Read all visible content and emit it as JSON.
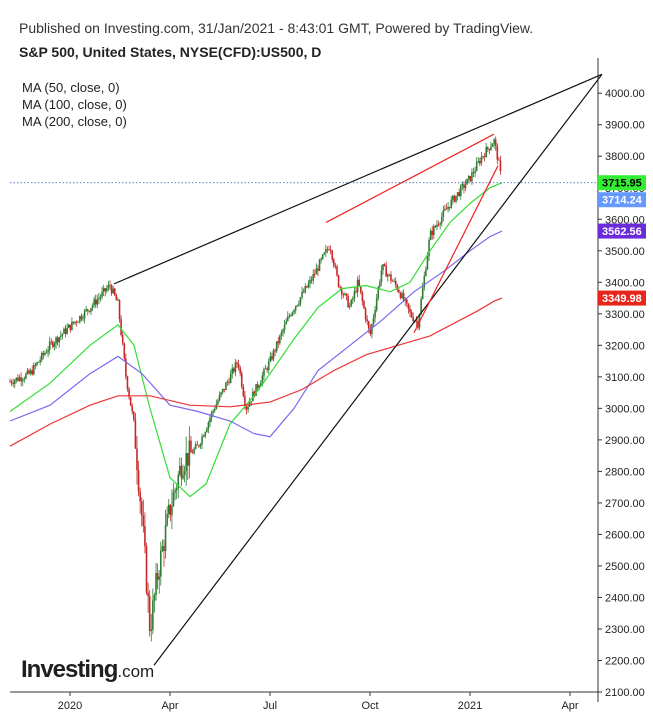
{
  "header": {
    "published": "Published on Investing.com, 31/Jan/2021 - 8:43:01 GMT, Powered by TradingView.",
    "symbol": "S&P 500, United States, NYSE(CFD):US500, D"
  },
  "legend": [
    "MA (50, close, 0)",
    "MA (100, close, 0)",
    "MA (200, close, 0)"
  ],
  "logo": {
    "text": "Investing",
    "suffix": ".com"
  },
  "chart_data": {
    "type": "candlestick",
    "ylim": [
      2100,
      4080
    ],
    "y_ticks": [
      "4000.00",
      "3900.00",
      "3800.00",
      "3700.00",
      "3600.00",
      "3500.00",
      "3400.00",
      "3300.00",
      "3200.00",
      "3100.00",
      "3000.00",
      "2900.00",
      "2800.00",
      "2700.00",
      "2600.00",
      "2500.00",
      "2400.00",
      "2300.00",
      "2200.00",
      "2100.00"
    ],
    "x_ticks": [
      {
        "label": "2020",
        "t": 2020.0
      },
      {
        "label": "Apr",
        "t": 2020.25
      },
      {
        "label": "Jul",
        "t": 2020.5
      },
      {
        "label": "Oct",
        "t": 2020.75
      },
      {
        "label": "2021",
        "t": 2021.0
      },
      {
        "label": "Apr",
        "t": 2021.25
      }
    ],
    "x_range": [
      2019.85,
      2021.32
    ],
    "price_path": [
      [
        2019.85,
        3085
      ],
      [
        2019.9,
        3110
      ],
      [
        2019.95,
        3200
      ],
      [
        2020.05,
        3320
      ],
      [
        2020.1,
        3390
      ],
      [
        2020.12,
        3330
      ],
      [
        2020.14,
        3100
      ],
      [
        2020.16,
        2950
      ],
      [
        2020.18,
        2650
      ],
      [
        2020.2,
        2300
      ],
      [
        2020.22,
        2480
      ],
      [
        2020.25,
        2680
      ],
      [
        2020.28,
        2830
      ],
      [
        2020.32,
        2880
      ],
      [
        2020.36,
        3000
      ],
      [
        2020.42,
        3150
      ],
      [
        2020.44,
        3000
      ],
      [
        2020.5,
        3150
      ],
      [
        2020.55,
        3300
      ],
      [
        2020.6,
        3400
      ],
      [
        2020.65,
        3520
      ],
      [
        2020.67,
        3400
      ],
      [
        2020.7,
        3320
      ],
      [
        2020.72,
        3400
      ],
      [
        2020.75,
        3230
      ],
      [
        2020.78,
        3450
      ],
      [
        2020.82,
        3380
      ],
      [
        2020.85,
        3300
      ],
      [
        2020.87,
        3270
      ],
      [
        2020.9,
        3550
      ],
      [
        2020.95,
        3650
      ],
      [
        2021.0,
        3730
      ],
      [
        2021.03,
        3800
      ],
      [
        2021.06,
        3850
      ],
      [
        2021.07,
        3790
      ],
      [
        2021.08,
        3714.24
      ]
    ],
    "series": [
      {
        "name": "MA (50, close, 0)",
        "color": "#33dd33",
        "points": [
          [
            2019.85,
            2990
          ],
          [
            2019.95,
            3080
          ],
          [
            2020.05,
            3200
          ],
          [
            2020.12,
            3265
          ],
          [
            2020.16,
            3200
          ],
          [
            2020.2,
            3000
          ],
          [
            2020.25,
            2780
          ],
          [
            2020.3,
            2720
          ],
          [
            2020.34,
            2760
          ],
          [
            2020.4,
            2950
          ],
          [
            2020.46,
            3040
          ],
          [
            2020.5,
            3110
          ],
          [
            2020.56,
            3220
          ],
          [
            2020.62,
            3320
          ],
          [
            2020.68,
            3380
          ],
          [
            2020.74,
            3390
          ],
          [
            2020.8,
            3370
          ],
          [
            2020.85,
            3400
          ],
          [
            2020.9,
            3500
          ],
          [
            2020.95,
            3590
          ],
          [
            2021.0,
            3650
          ],
          [
            2021.05,
            3700
          ],
          [
            2021.08,
            3715.95
          ]
        ]
      },
      {
        "name": "MA (100, close, 0)",
        "color": "#7b68ee",
        "points": [
          [
            2019.85,
            2960
          ],
          [
            2019.95,
            3010
          ],
          [
            2020.05,
            3110
          ],
          [
            2020.12,
            3165
          ],
          [
            2020.18,
            3110
          ],
          [
            2020.25,
            3010
          ],
          [
            2020.32,
            2990
          ],
          [
            2020.4,
            2960
          ],
          [
            2020.46,
            2920
          ],
          [
            2020.5,
            2910
          ],
          [
            2020.56,
            3000
          ],
          [
            2020.62,
            3120
          ],
          [
            2020.7,
            3200
          ],
          [
            2020.78,
            3280
          ],
          [
            2020.86,
            3370
          ],
          [
            2020.94,
            3440
          ],
          [
            2021.0,
            3500
          ],
          [
            2021.05,
            3545
          ],
          [
            2021.08,
            3562.56
          ]
        ]
      },
      {
        "name": "MA (200, close, 0)",
        "color": "#ee3333",
        "points": [
          [
            2019.85,
            2880
          ],
          [
            2019.95,
            2950
          ],
          [
            2020.05,
            3010
          ],
          [
            2020.12,
            3040
          ],
          [
            2020.2,
            3040
          ],
          [
            2020.3,
            3010
          ],
          [
            2020.4,
            3005
          ],
          [
            2020.5,
            3020
          ],
          [
            2020.58,
            3060
          ],
          [
            2020.66,
            3120
          ],
          [
            2020.74,
            3170
          ],
          [
            2020.82,
            3200
          ],
          [
            2020.9,
            3230
          ],
          [
            2020.96,
            3270
          ],
          [
            2021.02,
            3310
          ],
          [
            2021.06,
            3340
          ],
          [
            2021.08,
            3349.98
          ]
        ]
      }
    ],
    "trendlines": [
      {
        "color": "#111111",
        "from": [
          2020.11,
          3395
        ],
        "to": [
          2021.33,
          4060
        ]
      },
      {
        "color": "#111111",
        "from": [
          2020.21,
          2185
        ],
        "to": [
          2021.33,
          4060
        ]
      },
      {
        "color": "#ee2222",
        "from": [
          2020.64,
          3590
        ],
        "to": [
          2021.06,
          3870
        ]
      },
      {
        "color": "#ee2222",
        "from": [
          2020.86,
          3240
        ],
        "to": [
          2021.07,
          3770
        ]
      }
    ],
    "current_price_line": 3715.95,
    "flags": [
      {
        "label": "3715.95",
        "value": 3715.95,
        "bg": "#33ee33",
        "fg": "#000000"
      },
      {
        "label": "3714.24",
        "value": 3714.24,
        "bg": "#6699ff",
        "fg": "#ffffff"
      },
      {
        "label": "3562.56",
        "value": 3562.56,
        "bg": "#6a2bd9",
        "fg": "#ffffff"
      },
      {
        "label": "3349.98",
        "value": 3349.98,
        "bg": "#e8251b",
        "fg": "#ffffff"
      }
    ],
    "candle_colors": {
      "up": "#2f7d32",
      "down": "#c62828"
    }
  }
}
